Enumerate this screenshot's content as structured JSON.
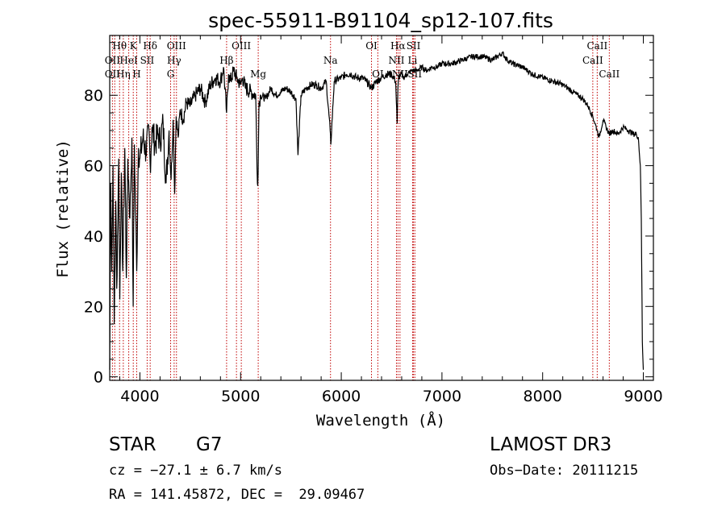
{
  "chart_data": {
    "type": "line",
    "title": "spec-55911-B91104_sp12-107.fits",
    "xlabel": "Wavelength (Å)",
    "ylabel": "Flux (relative)",
    "xlim": [
      3700,
      9100
    ],
    "ylim": [
      -1,
      97
    ],
    "xticks": [
      4000,
      5000,
      6000,
      7000,
      8000,
      9000
    ],
    "yticks": [
      0,
      20,
      40,
      60,
      80
    ],
    "series": [
      {
        "name": "spectrum",
        "x": [
          3700,
          3710,
          3720,
          3733,
          3745,
          3760,
          3770,
          3790,
          3800,
          3815,
          3830,
          3850,
          3865,
          3880,
          3900,
          3920,
          3933,
          3945,
          3968,
          3985,
          4000,
          4030,
          4060,
          4090,
          4102,
          4120,
          4150,
          4180,
          4200,
          4230,
          4260,
          4290,
          4310,
          4330,
          4345,
          4360,
          4380,
          4400,
          4430,
          4460,
          4500,
          4550,
          4600,
          4650,
          4700,
          4750,
          4800,
          4830,
          4861,
          4880,
          4900,
          4930,
          4960,
          5000,
          5020,
          5050,
          5100,
          5150,
          5167,
          5174,
          5183,
          5200,
          5250,
          5300,
          5350,
          5400,
          5450,
          5500,
          5550,
          5570,
          5600,
          5650,
          5700,
          5750,
          5800,
          5850,
          5890,
          5896,
          5930,
          6000,
          6050,
          6100,
          6150,
          6200,
          6250,
          6300,
          6350,
          6400,
          6450,
          6500,
          6540,
          6555,
          6563,
          6570,
          6590,
          6620,
          6650,
          6700,
          6750,
          6800,
          6850,
          6900,
          6950,
          7000,
          7100,
          7200,
          7300,
          7400,
          7500,
          7550,
          7600,
          7650,
          7700,
          7800,
          7900,
          8000,
          8100,
          8200,
          8300,
          8400,
          8450,
          8498,
          8520,
          8542,
          8560,
          8600,
          8630,
          8662,
          8700,
          8750,
          8800,
          8850,
          8900,
          8930,
          8950,
          8970,
          8980,
          8990,
          9000
        ],
        "values": [
          2,
          55,
          30,
          60,
          15,
          50,
          25,
          62,
          22,
          58,
          30,
          65,
          28,
          62,
          45,
          68,
          20,
          66,
          30,
          65,
          62,
          68,
          64,
          70,
          60,
          71,
          66,
          69,
          67,
          72,
          55,
          70,
          56,
          73,
          52,
          74,
          68,
          76,
          73,
          78,
          77,
          80,
          82,
          78,
          83,
          85,
          84,
          88,
          75,
          86,
          84,
          87,
          85,
          83,
          85,
          82,
          81,
          80,
          55,
          58,
          78,
          80,
          79,
          82,
          80,
          81,
          82,
          81,
          79,
          63,
          80,
          82,
          83,
          83,
          82,
          84,
          70,
          66,
          84,
          85,
          86,
          86,
          85,
          85,
          84,
          82,
          84,
          85,
          86,
          86,
          84,
          72,
          82,
          85,
          86,
          85,
          86,
          87,
          87,
          88,
          87,
          88,
          88,
          89,
          89,
          90,
          91,
          91,
          90,
          91,
          92,
          90,
          89,
          88,
          86,
          85,
          84,
          83,
          81,
          79,
          77,
          74,
          72,
          70,
          68,
          73,
          71,
          69,
          70,
          69,
          71,
          70,
          69,
          69,
          68,
          60,
          45,
          10,
          2
        ]
      }
    ],
    "line_labels": [
      {
        "label": "Hθ",
        "wavelength": 3798,
        "row": 1
      },
      {
        "label": "K",
        "wavelength": 3934,
        "row": 1
      },
      {
        "label": "Hδ",
        "wavelength": 4102,
        "row": 1
      },
      {
        "label": "OIII",
        "wavelength": 4363,
        "row": 1
      },
      {
        "label": "OIII",
        "wavelength": 5007,
        "row": 1
      },
      {
        "label": "OI",
        "wavelength": 6300,
        "row": 1
      },
      {
        "label": "Hα",
        "wavelength": 6563,
        "row": 1
      },
      {
        "label": "SII",
        "wavelength": 6717,
        "row": 1
      },
      {
        "label": "CaII",
        "wavelength": 8542,
        "row": 1
      },
      {
        "label": "OII",
        "wavelength": 3727,
        "row": 2
      },
      {
        "label": "HeI",
        "wavelength": 3889,
        "row": 2
      },
      {
        "label": "SII",
        "wavelength": 4072,
        "row": 2
      },
      {
        "label": "Hγ",
        "wavelength": 4340,
        "row": 2
      },
      {
        "label": "Hβ",
        "wavelength": 4861,
        "row": 2
      },
      {
        "label": "Na",
        "wavelength": 5893,
        "row": 2
      },
      {
        "label": "NII",
        "wavelength": 6548,
        "row": 2
      },
      {
        "label": "Li",
        "wavelength": 6708,
        "row": 2
      },
      {
        "label": "CaII",
        "wavelength": 8498,
        "row": 2
      },
      {
        "label": "OII",
        "wavelength": 3727,
        "row": 3
      },
      {
        "label": "Hη",
        "wavelength": 3835,
        "row": 3
      },
      {
        "label": "H",
        "wavelength": 3968,
        "row": 3
      },
      {
        "label": "G",
        "wavelength": 4305,
        "row": 3
      },
      {
        "label": "Mg",
        "wavelength": 5175,
        "row": 3
      },
      {
        "label": "OI",
        "wavelength": 6363,
        "row": 3
      },
      {
        "label": "NII",
        "wavelength": 6583,
        "row": 3
      },
      {
        "label": "SII",
        "wavelength": 6731,
        "row": 3
      },
      {
        "label": "CaII",
        "wavelength": 8662,
        "row": 3
      }
    ],
    "marker_lines": [
      3727,
      3750,
      3798,
      3835,
      3889,
      3934,
      3968,
      4072,
      4102,
      4305,
      4340,
      4363,
      4861,
      4959,
      5007,
      5175,
      5893,
      6300,
      6363,
      6548,
      6563,
      6583,
      6708,
      6717,
      6731,
      8498,
      8542,
      8662
    ]
  },
  "info": {
    "class": "STAR",
    "subclass": "G7",
    "survey": "LAMOST DR3",
    "cz": "cz = −27.1 ± 6.7 km/s",
    "obs_date": "Obs−Date: 20111215",
    "coords": "RA = 141.45872, DEC =  29.09467"
  }
}
